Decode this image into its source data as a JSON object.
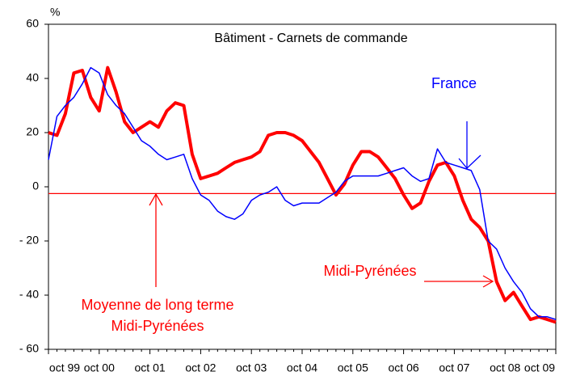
{
  "chart_data": {
    "type": "line",
    "title": "Bâtiment - Carnets de commande",
    "y_unit": "%",
    "categories": [
      "oct 99",
      null,
      null,
      null,
      null,
      null,
      "oct 00",
      null,
      null,
      null,
      null,
      null,
      "oct 01",
      null,
      null,
      null,
      null,
      null,
      "oct 02",
      null,
      null,
      null,
      null,
      null,
      "oct 03",
      null,
      null,
      null,
      null,
      null,
      "oct 04",
      null,
      null,
      null,
      null,
      null,
      "oct 05",
      null,
      null,
      null,
      null,
      null,
      "oct 06",
      null,
      null,
      null,
      null,
      null,
      "oct 07",
      null,
      null,
      null,
      null,
      null,
      "oct 08",
      null,
      null,
      null,
      null,
      null,
      "oct 09"
    ],
    "series": [
      {
        "name": "Midi-Pyrénées",
        "color": "#ff0000",
        "values": [
          20,
          19,
          27,
          42,
          43,
          33,
          28,
          44,
          35,
          24,
          20,
          22,
          24,
          22,
          28,
          31,
          30,
          12,
          3,
          4,
          5,
          7,
          9,
          10,
          11,
          13,
          19,
          20,
          20,
          19,
          17,
          13,
          9,
          3,
          -3,
          1,
          8,
          13,
          13,
          11,
          7,
          3,
          -3,
          -8,
          -6,
          2,
          8,
          9,
          4,
          -5,
          -12,
          -15,
          -20,
          -35,
          -42,
          -39,
          -44,
          -49,
          -48,
          -49,
          -50
        ]
      },
      {
        "name": "France",
        "color": "#0000ff",
        "values": [
          10,
          26,
          30,
          33,
          38,
          44,
          42,
          34,
          30,
          27,
          22,
          17,
          15,
          12,
          10,
          11,
          12,
          3,
          -3,
          -5,
          -9,
          -11,
          -12,
          -10,
          -5,
          -3,
          -2,
          0,
          -5,
          -7,
          -6,
          -6,
          -6,
          -4,
          -2,
          2,
          4,
          4,
          4,
          4,
          5,
          6,
          7,
          4,
          2,
          3,
          14,
          9,
          8,
          7,
          6,
          -1,
          -20,
          -23,
          -30,
          -35,
          -39,
          -45,
          -48,
          -48,
          -49
        ]
      }
    ],
    "reference_line": {
      "value": -2.5,
      "color": "#ff0000",
      "label": [
        "Moyenne de long terme",
        "Midi-Pyrénées"
      ]
    },
    "ylim": [
      -60,
      60
    ],
    "yticks": [
      {
        "value": -60,
        "label": "- 60"
      },
      {
        "value": -40,
        "label": "- 40"
      },
      {
        "value": -20,
        "label": "- 20"
      },
      0,
      20,
      40,
      60
    ],
    "grid": false
  }
}
